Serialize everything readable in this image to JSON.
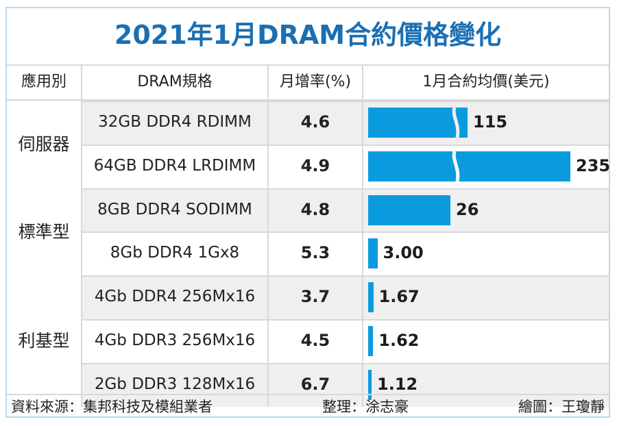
{
  "chart_data": {
    "type": "table",
    "title": "2021年1月DRAM合約價格變化",
    "columns": [
      "應用別",
      "DRAM規格",
      "月增率(%)",
      "1月合約均價(美元)"
    ],
    "groups": [
      {
        "category": "伺服器",
        "rows": [
          {
            "spec": "32GB DDR4 RDIMM",
            "rate": "4.6",
            "price": "115",
            "price_value": 115,
            "broken_bar": true
          },
          {
            "spec": "64GB DDR4 LRDIMM",
            "rate": "4.9",
            "price": "235",
            "price_value": 235,
            "broken_bar": true
          }
        ]
      },
      {
        "category": "標準型",
        "rows": [
          {
            "spec": "8GB DDR4 SODIMM",
            "rate": "4.8",
            "price": "26",
            "price_value": 26,
            "broken_bar": false
          },
          {
            "spec": "8Gb DDR4 1Gx8",
            "rate": "5.3",
            "price": "3.00",
            "price_value": 3.0,
            "broken_bar": false
          }
        ]
      },
      {
        "category": "利基型",
        "rows": [
          {
            "spec": "4Gb DDR4 256Mx16",
            "rate": "3.7",
            "price": "1.67",
            "price_value": 1.67,
            "broken_bar": false
          },
          {
            "spec": "4Gb DDR3 256Mx16",
            "rate": "4.5",
            "price": "1.62",
            "price_value": 1.62,
            "broken_bar": false
          },
          {
            "spec": "2Gb DDR3 128Mx16",
            "rate": "6.7",
            "price": "1.12",
            "price_value": 1.12,
            "broken_bar": false
          }
        ]
      }
    ]
  },
  "footer": {
    "source": "資料來源：集邦科技及模組業者",
    "editor": "整理：涂志豪",
    "artist": "繪圖：王瓊靜"
  },
  "colors": {
    "title": "#1a6fb3",
    "bar": "#0a9bdf",
    "row_shade": "#efefef"
  }
}
